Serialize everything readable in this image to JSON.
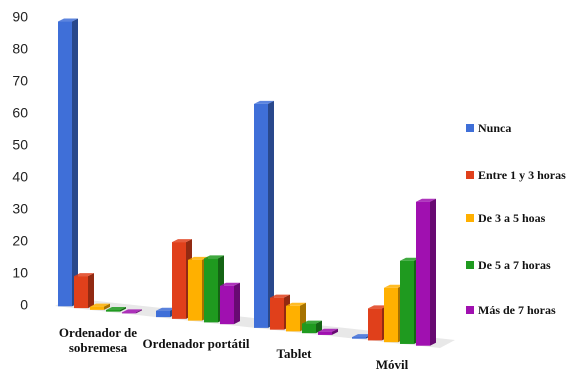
{
  "chart_data": {
    "type": "bar",
    "categories": [
      "Ordenador de sobremesa",
      "Ordenador portátil",
      "Tablet",
      "Móvil"
    ],
    "series": [
      {
        "name": "Nunca",
        "color": "#3f6fd8",
        "values": [
          89,
          2,
          70,
          0.5
        ]
      },
      {
        "name": "Entre 1 y 3 horas",
        "color": "#e0401b",
        "values": [
          10,
          24,
          10,
          10
        ]
      },
      {
        "name": "De 3 a 5 hoas",
        "color": "#ffb000",
        "values": [
          1,
          19,
          8,
          17
        ]
      },
      {
        "name": "De 5 a 7 horas",
        "color": "#1f9a1f",
        "values": [
          0.5,
          20,
          3,
          26
        ]
      },
      {
        "name": "Más de 7 horas",
        "color": "#a010b0",
        "values": [
          0.3,
          12,
          1,
          45
        ]
      }
    ],
    "ylim": [
      0,
      90
    ],
    "yticks": [
      0,
      10,
      20,
      30,
      40,
      50,
      60,
      70,
      80,
      90
    ]
  }
}
